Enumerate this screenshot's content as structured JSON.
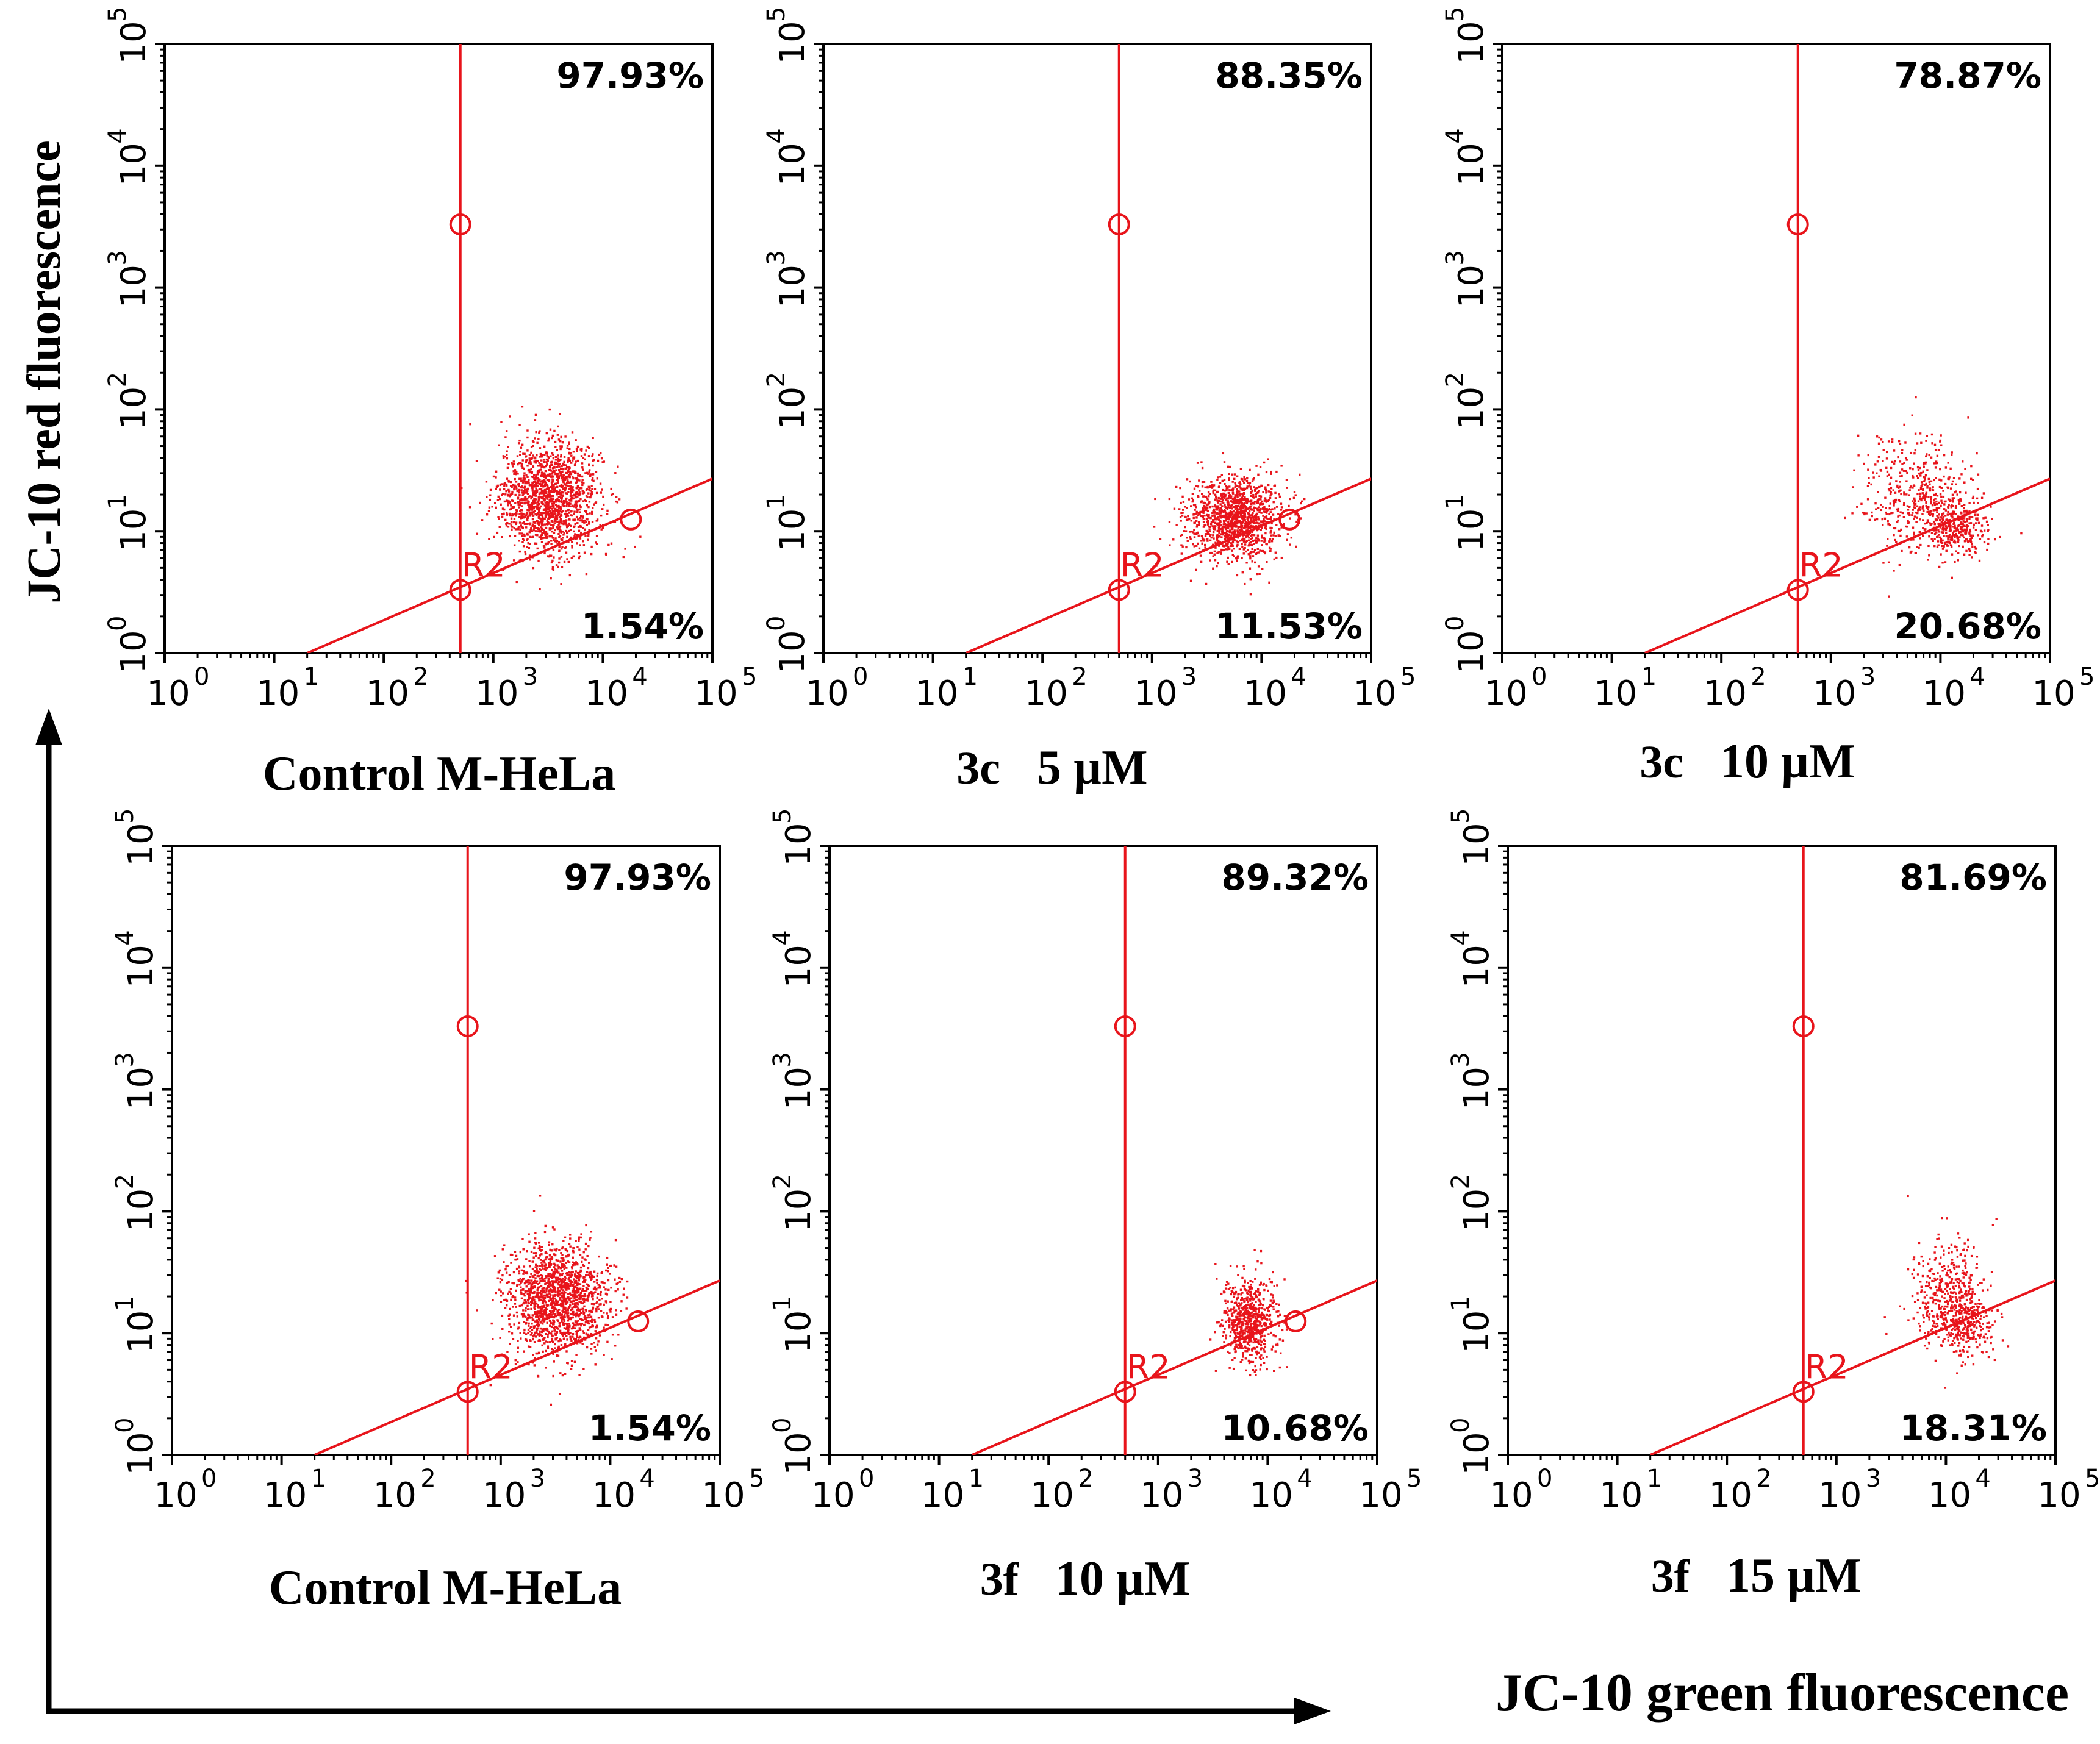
{
  "figure": {
    "y_axis_label": "JC-10 red fluorescence",
    "x_axis_label": "JC-10 green fluorescence",
    "colors": {
      "data": "#e8141b",
      "axis": "#000000"
    }
  },
  "chart_data": [
    {
      "type": "scatter",
      "caption": "Control M-HeLa",
      "top_right_percent": "97.93%",
      "bottom_right_percent": "1.54%",
      "region_label": "R2",
      "x_scale": "log",
      "y_scale": "log",
      "xlim": [
        1,
        100000
      ],
      "ylim": [
        1,
        100000
      ],
      "x_ticks": [
        "10",
        "10",
        "10",
        "10",
        "10",
        "10"
      ],
      "x_tick_exponents": [
        "0",
        "1",
        "2",
        "3",
        "4",
        "5"
      ],
      "y_ticks": [
        "10",
        "10",
        "10",
        "10",
        "10",
        "10"
      ],
      "y_tick_exponents": [
        "0",
        "1",
        "2",
        "3",
        "4",
        "5"
      ],
      "gate_vertical_x": 500,
      "gate_line": {
        "x1": 20,
        "y1": 1,
        "x2": 100000,
        "y2": 27
      },
      "gate_handles": [
        [
          500,
          3300
        ],
        [
          500,
          3.3
        ],
        [
          18000,
          12.5
        ]
      ],
      "population": [
        {
          "cx": 3200,
          "cy": 19,
          "spread_x": 0.23,
          "spread_y": 0.23,
          "n": 1600
        }
      ]
    },
    {
      "type": "scatter",
      "caption_prefix": "3c",
      "caption": "5 µM",
      "top_right_percent": "88.35%",
      "bottom_right_percent": "11.53%",
      "region_label": "R2",
      "x_scale": "log",
      "y_scale": "log",
      "xlim": [
        1,
        100000
      ],
      "ylim": [
        1,
        100000
      ],
      "x_ticks": [
        "10",
        "10",
        "10",
        "10",
        "10",
        "10"
      ],
      "x_tick_exponents": [
        "0",
        "1",
        "2",
        "3",
        "4",
        "5"
      ],
      "y_ticks": [
        "10",
        "10",
        "10",
        "10",
        "10",
        "10"
      ],
      "y_tick_exponents": [
        "0",
        "1",
        "2",
        "3",
        "4",
        "5"
      ],
      "gate_vertical_x": 500,
      "gate_line": {
        "x1": 20,
        "y1": 1,
        "x2": 100000,
        "y2": 27
      },
      "gate_handles": [
        [
          500,
          3300
        ],
        [
          500,
          3.3
        ],
        [
          18000,
          12.5
        ]
      ],
      "population": [
        {
          "cx": 5500,
          "cy": 13,
          "spread_x": 0.22,
          "spread_y": 0.17,
          "n": 1300
        }
      ]
    },
    {
      "type": "scatter",
      "caption_prefix": "3c",
      "caption": "10 µM",
      "top_right_percent": "78.87%",
      "bottom_right_percent": "20.68%",
      "region_label": "R2",
      "x_scale": "log",
      "y_scale": "log",
      "xlim": [
        1,
        100000
      ],
      "ylim": [
        1,
        100000
      ],
      "x_ticks": [
        "10",
        "10",
        "10",
        "10",
        "10",
        "10"
      ],
      "x_tick_exponents": [
        "0",
        "1",
        "2",
        "3",
        "4",
        "5"
      ],
      "y_ticks": [
        "10",
        "10",
        "10",
        "10",
        "10",
        "10"
      ],
      "y_tick_exponents": [
        "0",
        "1",
        "2",
        "3",
        "4",
        "5"
      ],
      "gate_vertical_x": 500,
      "gate_line": {
        "x1": 20,
        "y1": 1,
        "x2": 100000,
        "y2": 27
      },
      "gate_handles": [
        [
          500,
          3300
        ],
        [
          500,
          3.3
        ]
      ],
      "population": [
        {
          "cx": 6000,
          "cy": 20,
          "spread_x": 0.25,
          "spread_y": 0.25,
          "n": 450
        },
        {
          "cx": 13000,
          "cy": 11,
          "spread_x": 0.15,
          "spread_y": 0.12,
          "n": 350
        }
      ]
    },
    {
      "type": "scatter",
      "caption": "Control M-HeLa",
      "top_right_percent": "97.93%",
      "bottom_right_percent": "1.54%",
      "region_label": "R2",
      "x_scale": "log",
      "y_scale": "log",
      "xlim": [
        1,
        100000
      ],
      "ylim": [
        1,
        100000
      ],
      "x_ticks": [
        "10",
        "10",
        "10",
        "10",
        "10",
        "10"
      ],
      "x_tick_exponents": [
        "0",
        "1",
        "2",
        "3",
        "4",
        "5"
      ],
      "y_ticks": [
        "10",
        "10",
        "10",
        "10",
        "10",
        "10"
      ],
      "y_tick_exponents": [
        "0",
        "1",
        "2",
        "3",
        "4",
        "5"
      ],
      "gate_vertical_x": 500,
      "gate_line": {
        "x1": 20,
        "y1": 1,
        "x2": 100000,
        "y2": 27
      },
      "gate_handles": [
        [
          500,
          3300
        ],
        [
          500,
          3.3
        ],
        [
          18000,
          12.5
        ]
      ],
      "population": [
        {
          "cx": 3200,
          "cy": 19,
          "spread_x": 0.23,
          "spread_y": 0.23,
          "n": 1600
        }
      ]
    },
    {
      "type": "scatter",
      "caption_prefix": "3f",
      "caption": "10 µM",
      "top_right_percent": "89.32%",
      "bottom_right_percent": "10.68%",
      "region_label": "R2",
      "x_scale": "log",
      "y_scale": "log",
      "xlim": [
        1,
        100000
      ],
      "ylim": [
        1,
        100000
      ],
      "x_ticks": [
        "10",
        "10",
        "10",
        "10",
        "10",
        "10"
      ],
      "x_tick_exponents": [
        "0",
        "1",
        "2",
        "3",
        "4",
        "5"
      ],
      "y_ticks": [
        "10",
        "10",
        "10",
        "10",
        "10",
        "10"
      ],
      "y_tick_exponents": [
        "0",
        "1",
        "2",
        "3",
        "4",
        "5"
      ],
      "gate_vertical_x": 500,
      "gate_line": {
        "x1": 20,
        "y1": 1,
        "x2": 100000,
        "y2": 27
      },
      "gate_handles": [
        [
          500,
          3300
        ],
        [
          500,
          3.3
        ],
        [
          18000,
          12.5
        ]
      ],
      "population": [
        {
          "cx": 6500,
          "cy": 13,
          "spread_x": 0.12,
          "spread_y": 0.18,
          "n": 700
        }
      ]
    },
    {
      "type": "scatter",
      "caption_prefix": "3f",
      "caption": "15 µM",
      "top_right_percent": "81.69%",
      "bottom_right_percent": "18.31%",
      "region_label": "R2",
      "x_scale": "log",
      "y_scale": "log",
      "xlim": [
        1,
        100000
      ],
      "ylim": [
        1,
        100000
      ],
      "x_ticks": [
        "10",
        "10",
        "10",
        "10",
        "10",
        "10"
      ],
      "x_tick_exponents": [
        "0",
        "1",
        "2",
        "3",
        "4",
        "5"
      ],
      "y_ticks": [
        "10",
        "10",
        "10",
        "10",
        "10",
        "10"
      ],
      "y_tick_exponents": [
        "0",
        "1",
        "2",
        "3",
        "4",
        "5"
      ],
      "gate_vertical_x": 500,
      "gate_line": {
        "x1": 20,
        "y1": 1,
        "x2": 100000,
        "y2": 27
      },
      "gate_handles": [
        [
          500,
          3300
        ],
        [
          500,
          3.3
        ]
      ],
      "population": [
        {
          "cx": 10000,
          "cy": 22,
          "spread_x": 0.16,
          "spread_y": 0.22,
          "n": 450
        },
        {
          "cx": 15000,
          "cy": 12,
          "spread_x": 0.12,
          "spread_y": 0.12,
          "n": 250
        }
      ]
    }
  ]
}
